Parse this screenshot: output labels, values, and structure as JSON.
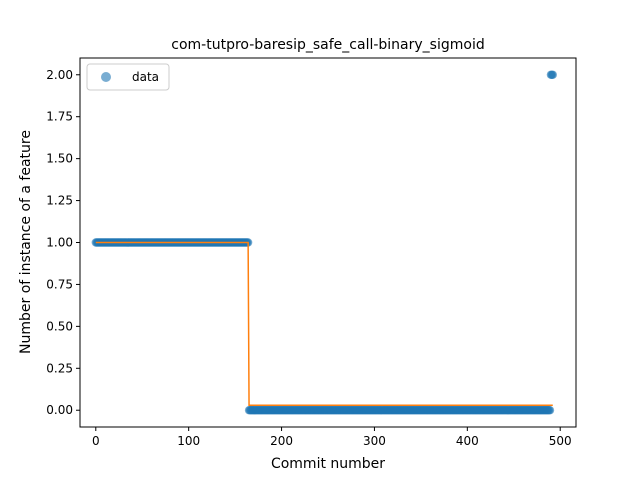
{
  "chart_data": {
    "type": "scatter",
    "title": "com-tutpro-baresip_safe_call-binary_sigmoid",
    "xlabel": "Commit number",
    "ylabel": "Number of instance of a feature",
    "xlim": [
      -17,
      517
    ],
    "ylim": [
      -0.1,
      2.1
    ],
    "xticks": [
      0,
      100,
      200,
      300,
      400,
      500
    ],
    "xtick_labels": [
      "0",
      "100",
      "200",
      "300",
      "400",
      "500"
    ],
    "yticks": [
      0.0,
      0.25,
      0.5,
      0.75,
      1.0,
      1.25,
      1.5,
      1.75,
      2.0
    ],
    "ytick_labels": [
      "0.00",
      "0.25",
      "0.50",
      "0.75",
      "1.00",
      "1.25",
      "1.50",
      "1.75",
      "2.00"
    ],
    "legend": {
      "position": "top-left",
      "entries": [
        "data"
      ]
    },
    "grid": false,
    "series": [
      {
        "name": "data",
        "kind": "points",
        "color": "#1f77b4",
        "segments": [
          {
            "x_start": 0,
            "x_end": 164,
            "y": 1.0
          },
          {
            "x_start": 165,
            "x_end": 489,
            "y": 0.0
          },
          {
            "x_start": 490,
            "x_end": 492,
            "y": 2.0
          }
        ]
      },
      {
        "kind": "line",
        "color": "#ff7f0e",
        "x": [
          0,
          164,
          165,
          492
        ],
        "y": [
          1.0,
          1.0,
          0.03,
          0.03
        ]
      }
    ]
  }
}
